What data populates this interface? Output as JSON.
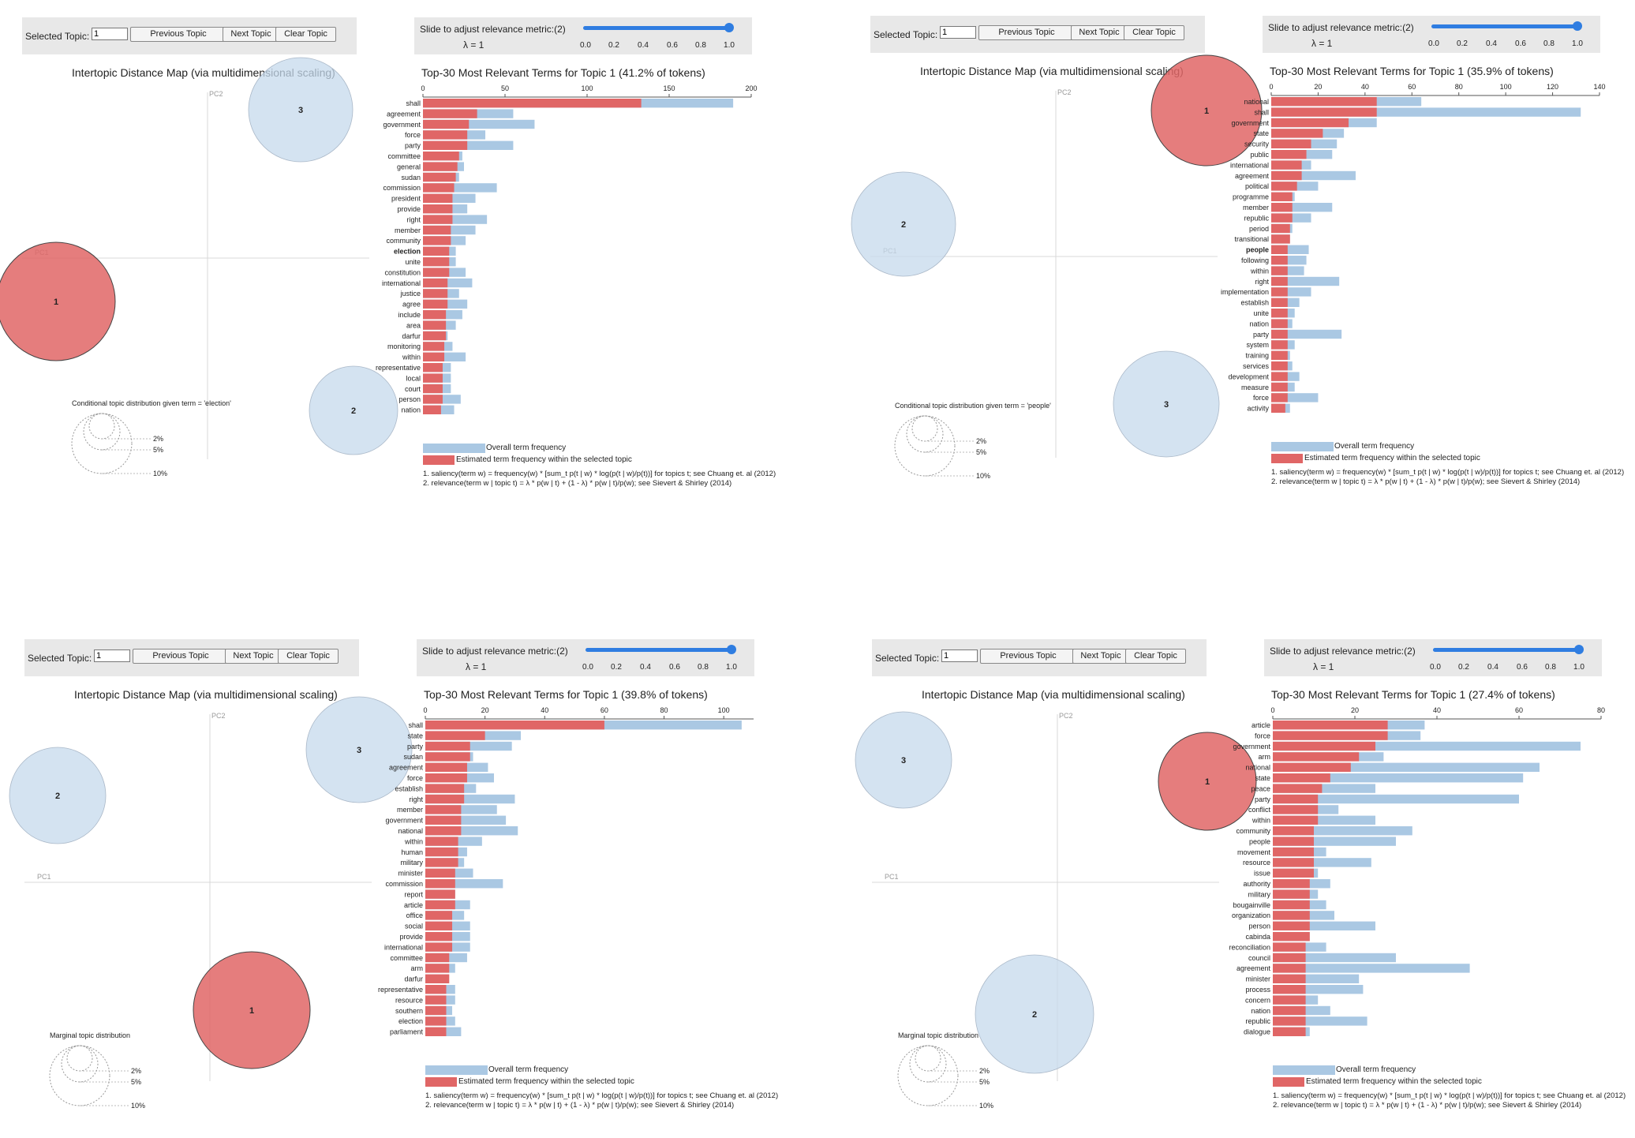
{
  "colors": {
    "selected": "#e06666",
    "overall": "#aac8e3",
    "circle": "#c6d9ec",
    "control_bg": "#e8e8e8",
    "slider": "#2f7de1"
  },
  "panels": [
    {
      "selected_topic_label": "Selected Topic:",
      "topic_value": "1",
      "prev_label": "Previous Topic",
      "next_label": "Next Topic",
      "clear_label": "Clear Topic",
      "slider_title": "Slide to adjust relevance metric:(2)",
      "lambda_text": "λ = 1",
      "slider_ticks": [
        "0.0",
        "0.2",
        "0.4",
        "0.6",
        "0.8",
        "1.0"
      ],
      "slider_value": 1.0,
      "map_title": "Intertopic Distance Map (via multidimensional scaling)",
      "pc1": "PC1",
      "pc2": "PC2",
      "circles": [
        {
          "label": "1",
          "selected": true
        },
        {
          "label": "2",
          "selected": false
        },
        {
          "label": "3",
          "selected": false
        }
      ],
      "size_legend_title": "Conditional topic distribution given term = 'election'",
      "size_legend": [
        "2%",
        "5%",
        "10%"
      ],
      "legend_overall": "Overall term frequency",
      "legend_estimated": "Estimated term frequency within the selected topic",
      "note1": "1. saliency(term w) = frequency(w) * [sum_t p(t | w) * log(p(t | w)/p(t))] for topics t; see Chuang et. al (2012)",
      "note2": "2. relevance(term w | topic t) = λ * p(w | t) + (1 - λ) * p(w | t)/p(w); see Sievert & Shirley (2014)",
      "chart_data": {
        "type": "bar",
        "title": "Top-30 Most Relevant Terms for Topic 1 (41.2% of tokens)",
        "xlim": [
          0,
          200
        ],
        "xticks": [
          0,
          50,
          100,
          150,
          200
        ],
        "highlight_term": "election",
        "categories": [
          "shall",
          "agreement",
          "government",
          "force",
          "party",
          "committee",
          "general",
          "sudan",
          "commission",
          "president",
          "provide",
          "right",
          "member",
          "community",
          "election",
          "unite",
          "constitution",
          "international",
          "justice",
          "agree",
          "include",
          "area",
          "darfur",
          "monitoring",
          "within",
          "representative",
          "local",
          "court",
          "person",
          "nation"
        ],
        "series": [
          {
            "name": "Overall term frequency",
            "values": [
              189,
              55,
              68,
              38,
              55,
              24,
              25,
              22,
              45,
              32,
              27,
              39,
              32,
              26,
              20,
              20,
              26,
              30,
              22,
              27,
              24,
              20,
              15,
              18,
              26,
              17,
              17,
              17,
              23,
              19
            ]
          },
          {
            "name": "Estimated term frequency within the selected topic",
            "values": [
              133,
              33,
              28,
              27,
              27,
              22,
              21,
              20,
              19,
              18,
              18,
              18,
              17,
              17,
              16,
              16,
              16,
              15,
              15,
              15,
              14,
              14,
              14,
              13,
              13,
              12,
              12,
              12,
              12,
              11
            ]
          }
        ]
      }
    },
    {
      "selected_topic_label": "Selected Topic:",
      "topic_value": "1",
      "prev_label": "Previous Topic",
      "next_label": "Next Topic",
      "clear_label": "Clear Topic",
      "slider_title": "Slide to adjust relevance metric:(2)",
      "lambda_text": "λ = 1",
      "slider_ticks": [
        "0.0",
        "0.2",
        "0.4",
        "0.6",
        "0.8",
        "1.0"
      ],
      "slider_value": 1.0,
      "map_title": "Intertopic Distance Map (via multidimensional scaling)",
      "pc1": "PC1",
      "pc2": "PC2",
      "circles": [
        {
          "label": "1",
          "selected": true
        },
        {
          "label": "2",
          "selected": false
        },
        {
          "label": "3",
          "selected": false
        }
      ],
      "size_legend_title": "Conditional topic distribution given term = 'people'",
      "size_legend": [
        "2%",
        "5%",
        "10%"
      ],
      "legend_overall": "Overall term frequency",
      "legend_estimated": "Estimated term frequency within the selected topic",
      "note1": "1. saliency(term w) = frequency(w) * [sum_t p(t | w) * log(p(t | w)/p(t))] for topics t; see Chuang et. al (2012)",
      "note2": "2. relevance(term w | topic t) = λ * p(w | t) + (1 - λ) * p(w | t)/p(w); see Sievert & Shirley (2014)",
      "chart_data": {
        "type": "bar",
        "title": "Top-30 Most Relevant Terms for Topic 1 (35.9% of tokens)",
        "xlim": [
          0,
          140
        ],
        "xticks": [
          0,
          20,
          40,
          60,
          80,
          100,
          120,
          140
        ],
        "highlight_term": "people",
        "categories": [
          "national",
          "shall",
          "government",
          "state",
          "security",
          "public",
          "international",
          "agreement",
          "political",
          "programme",
          "member",
          "republic",
          "period",
          "transitional",
          "people",
          "following",
          "within",
          "right",
          "implementation",
          "establish",
          "unite",
          "nation",
          "party",
          "system",
          "training",
          "services",
          "development",
          "measure",
          "force",
          "activity"
        ],
        "series": [
          {
            "name": "Overall term frequency",
            "values": [
              64,
              132,
              45,
              31,
              28,
              26,
              17,
              36,
              20,
              10,
              26,
              17,
              9,
              8,
              16,
              15,
              14,
              29,
              17,
              12,
              10,
              9,
              30,
              10,
              8,
              9,
              12,
              10,
              20,
              8
            ]
          },
          {
            "name": "Estimated term frequency within the selected topic",
            "values": [
              45,
              45,
              33,
              22,
              17,
              15,
              13,
              13,
              11,
              9,
              9,
              9,
              8,
              8,
              7,
              7,
              7,
              7,
              7,
              7,
              7,
              7,
              7,
              7,
              7,
              7,
              7,
              7,
              7,
              6
            ]
          }
        ]
      }
    },
    {
      "selected_topic_label": "Selected Topic:",
      "topic_value": "1",
      "prev_label": "Previous Topic",
      "next_label": "Next Topic",
      "clear_label": "Clear Topic",
      "slider_title": "Slide to adjust relevance metric:(2)",
      "lambda_text": "λ = 1",
      "slider_ticks": [
        "0.0",
        "0.2",
        "0.4",
        "0.6",
        "0.8",
        "1.0"
      ],
      "slider_value": 1.0,
      "map_title": "Intertopic Distance Map (via multidimensional scaling)",
      "pc1": "PC1",
      "pc2": "PC2",
      "circles": [
        {
          "label": "1",
          "selected": true
        },
        {
          "label": "2",
          "selected": false
        },
        {
          "label": "3",
          "selected": false
        }
      ],
      "size_legend_title": "Marginal topic distribution",
      "size_legend": [
        "2%",
        "5%",
        "10%"
      ],
      "legend_overall": "Overall term frequency",
      "legend_estimated": "Estimated term frequency within the selected topic",
      "note1": "1. saliency(term w) = frequency(w) * [sum_t p(t | w) * log(p(t | w)/p(t))] for topics t; see Chuang et. al (2012)",
      "note2": "2. relevance(term w | topic t) = λ * p(w | t) + (1 - λ) * p(w | t)/p(w); see Sievert & Shirley (2014)",
      "chart_data": {
        "type": "bar",
        "title": "Top-30 Most Relevant Terms for Topic 1 (39.8% of tokens)",
        "xlim": [
          0,
          110
        ],
        "xticks": [
          0,
          20,
          40,
          60,
          80,
          100
        ],
        "highlight_term": "",
        "categories": [
          "shall",
          "state",
          "party",
          "sudan",
          "agreement",
          "force",
          "establish",
          "right",
          "member",
          "government",
          "national",
          "within",
          "human",
          "military",
          "minister",
          "commission",
          "report",
          "article",
          "office",
          "social",
          "provide",
          "international",
          "committee",
          "arm",
          "darfur",
          "representative",
          "resource",
          "southern",
          "election",
          "parliament"
        ],
        "series": [
          {
            "name": "Overall term frequency",
            "values": [
              106,
              32,
              29,
              16,
              21,
              23,
              17,
              30,
              24,
              27,
              31,
              19,
              14,
              13,
              16,
              26,
              10,
              15,
              13,
              15,
              15,
              15,
              14,
              10,
              8,
              10,
              10,
              9,
              10,
              12
            ]
          },
          {
            "name": "Estimated term frequency within the selected topic",
            "values": [
              60,
              20,
              15,
              15,
              14,
              14,
              13,
              13,
              12,
              12,
              12,
              11,
              11,
              11,
              10,
              10,
              10,
              10,
              9,
              9,
              9,
              9,
              8,
              8,
              8,
              7,
              7,
              7,
              7,
              7
            ]
          }
        ]
      }
    },
    {
      "selected_topic_label": "Selected Topic:",
      "topic_value": "1",
      "prev_label": "Previous Topic",
      "next_label": "Next Topic",
      "clear_label": "Clear Topic",
      "slider_title": "Slide to adjust relevance metric:(2)",
      "lambda_text": "λ = 1",
      "slider_ticks": [
        "0.0",
        "0.2",
        "0.4",
        "0.6",
        "0.8",
        "1.0"
      ],
      "slider_value": 1.0,
      "map_title": "Intertopic Distance Map (via multidimensional scaling)",
      "pc1": "PC1",
      "pc2": "PC2",
      "circles": [
        {
          "label": "1",
          "selected": true
        },
        {
          "label": "2",
          "selected": false
        },
        {
          "label": "3",
          "selected": false
        }
      ],
      "size_legend_title": "Marginal topic distribution",
      "size_legend": [
        "2%",
        "5%",
        "10%"
      ],
      "legend_overall": "Overall term frequency",
      "legend_estimated": "Estimated term frequency within the selected topic",
      "note1": "1. saliency(term w) = frequency(w) * [sum_t p(t | w) * log(p(t | w)/p(t))] for topics t; see Chuang et. al (2012)",
      "note2": "2. relevance(term w | topic t) = λ * p(w | t) + (1 - λ) * p(w | t)/p(w); see Sievert & Shirley (2014)",
      "chart_data": {
        "type": "bar",
        "title": "Top-30 Most Relevant Terms for Topic 1 (27.4% of tokens)",
        "xlim": [
          0,
          80
        ],
        "xticks": [
          0,
          20,
          40,
          60,
          80
        ],
        "highlight_term": "",
        "categories": [
          "article",
          "force",
          "government",
          "arm",
          "national",
          "state",
          "peace",
          "party",
          "conflict",
          "within",
          "community",
          "people",
          "movement",
          "resource",
          "issue",
          "authority",
          "military",
          "bougainville",
          "organization",
          "person",
          "cabinda",
          "reconciliation",
          "council",
          "agreement",
          "minister",
          "process",
          "concern",
          "nation",
          "republic",
          "dialogue"
        ],
        "series": [
          {
            "name": "Overall term frequency",
            "values": [
              37,
              36,
              75,
              27,
              65,
              61,
              25,
              60,
              16,
              25,
              34,
              30,
              13,
              24,
              11,
              14,
              11,
              13,
              15,
              25,
              9,
              13,
              30,
              48,
              21,
              22,
              11,
              14,
              23,
              9
            ]
          },
          {
            "name": "Estimated term frequency within the selected topic",
            "values": [
              28,
              28,
              25,
              21,
              19,
              14,
              12,
              11,
              11,
              11,
              10,
              10,
              10,
              10,
              10,
              9,
              9,
              9,
              9,
              9,
              9,
              8,
              8,
              8,
              8,
              8,
              8,
              8,
              8,
              8
            ]
          }
        ]
      }
    }
  ]
}
